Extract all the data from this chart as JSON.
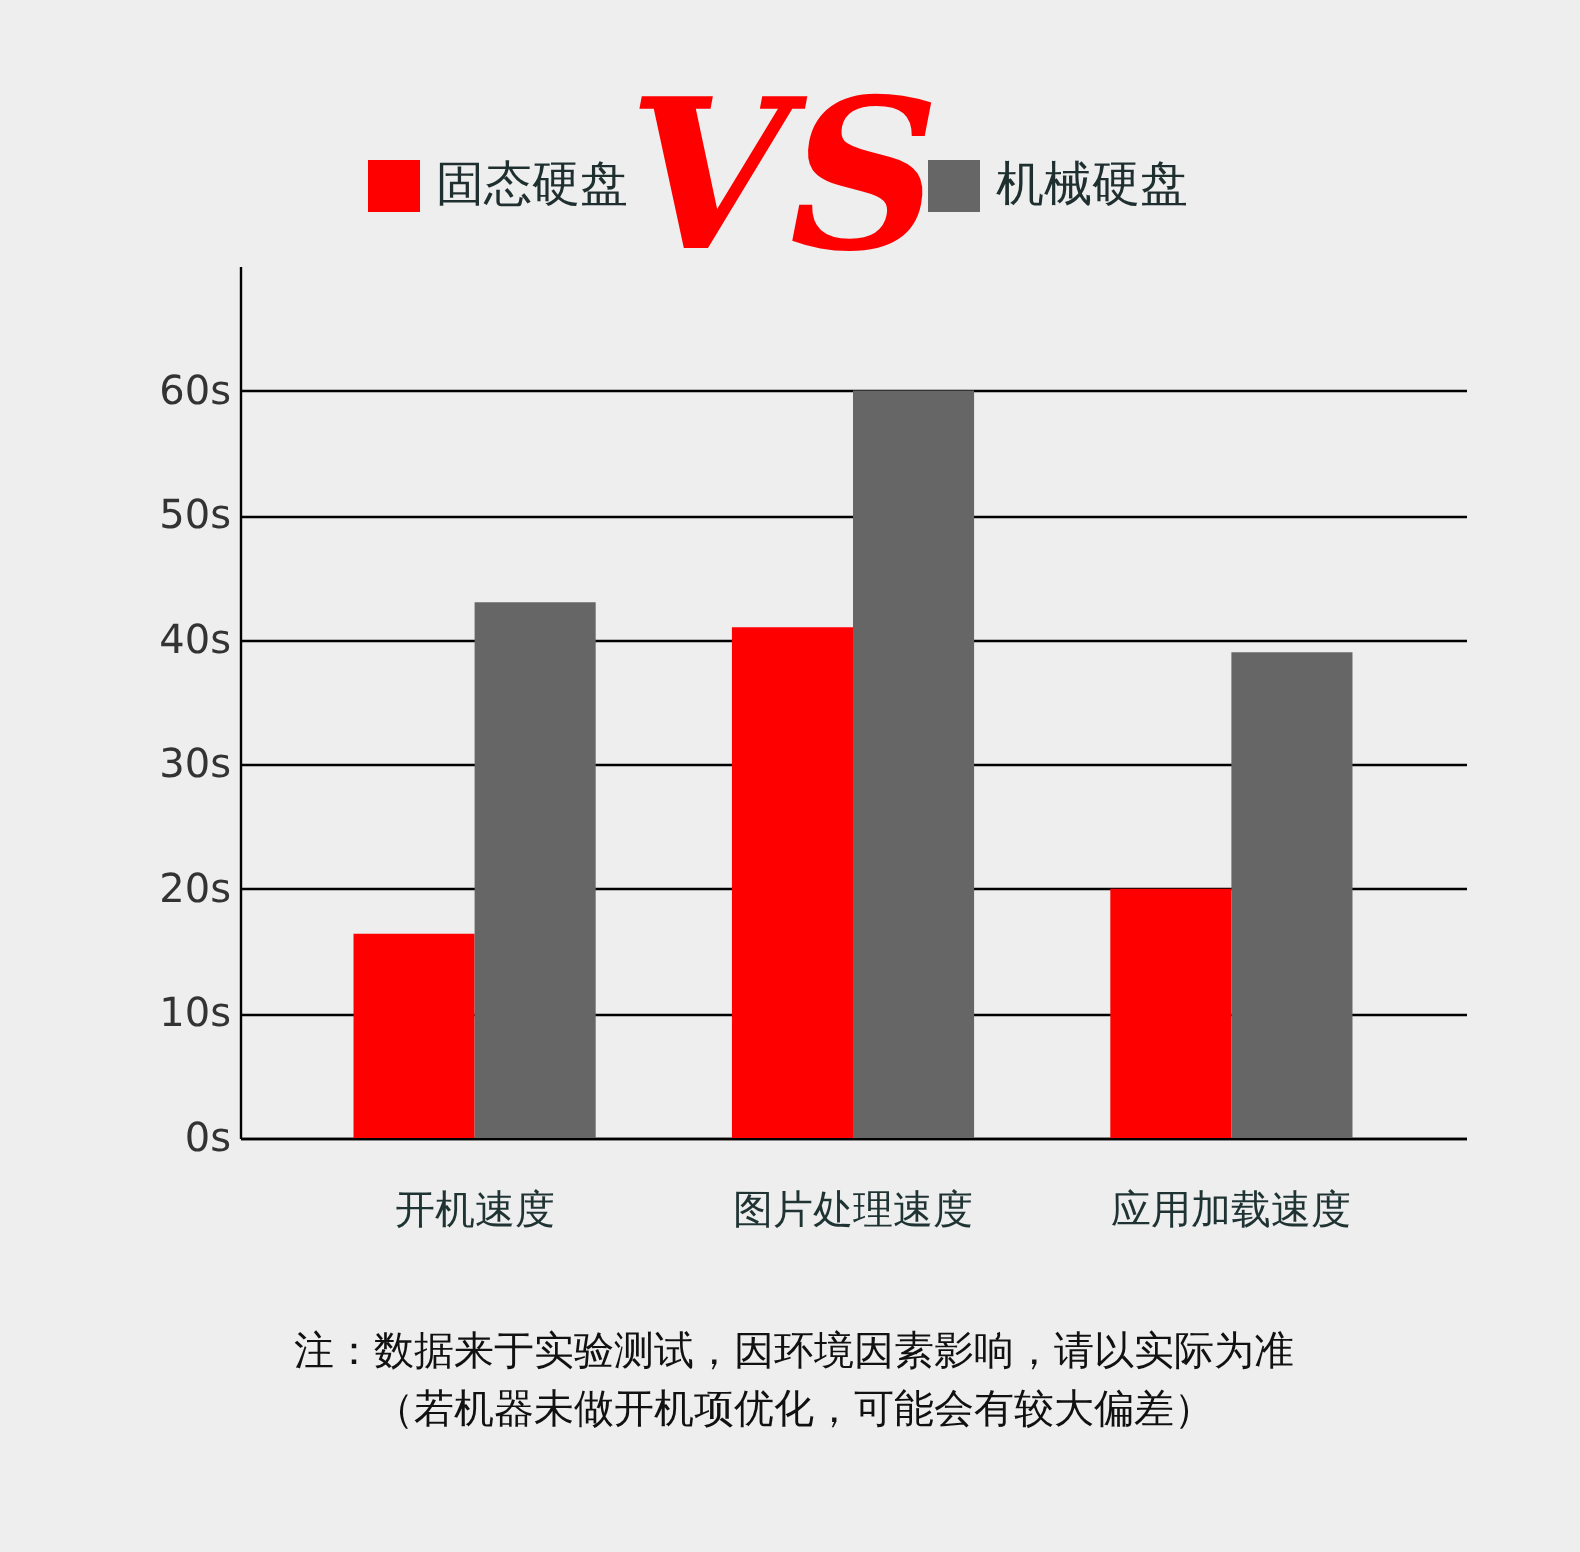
{
  "chart_data": {
    "type": "bar",
    "categories": [
      "开机速度",
      "图片处理速度",
      "应用加载速度"
    ],
    "series": [
      {
        "name": "固态硬盘",
        "color": "#ff0000",
        "values": [
          16.4,
          41,
          20
        ]
      },
      {
        "name": "机械硬盘",
        "color": "#666666",
        "values": [
          43,
          60,
          39
        ]
      }
    ],
    "ylim": [
      0,
      70
    ],
    "yticks": [
      {
        "value": 0,
        "label": "0s"
      },
      {
        "value": 10,
        "label": "10s"
      },
      {
        "value": 20,
        "label": "20s"
      },
      {
        "value": 30,
        "label": "30s"
      },
      {
        "value": 40,
        "label": "40s"
      },
      {
        "value": 50,
        "label": "50s"
      },
      {
        "value": 60,
        "label": "60s"
      }
    ],
    "grid": "y",
    "legend": "top",
    "annotations": [
      "VS",
      "注：数据来于实验测试，因环境因素影响，请以实际为准",
      "（若机器未做开机项优化，可能会有较大偏差）"
    ]
  }
}
